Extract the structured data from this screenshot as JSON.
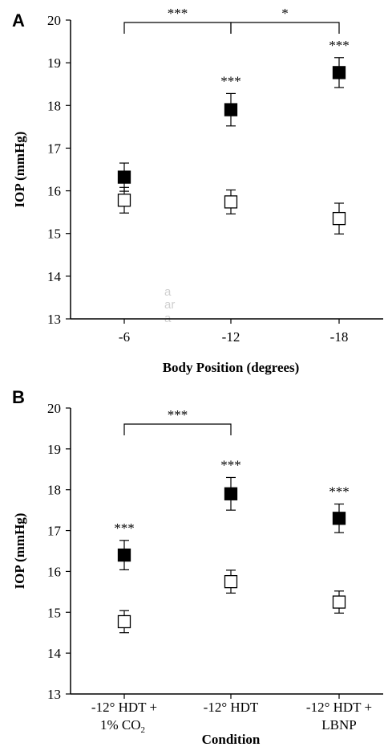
{
  "watermark": [
    "a",
    "ar",
    "a"
  ],
  "chart_data": [
    {
      "type": "scatter",
      "panel": "A",
      "xlabel": "Body Position (degrees)",
      "ylabel": "IOP (mmHg)",
      "ylim": [
        13,
        20
      ],
      "yticks": [
        13,
        14,
        15,
        16,
        17,
        18,
        19,
        20
      ],
      "categories": [
        [
          "-6"
        ],
        [
          "-12"
        ],
        [
          "-18"
        ]
      ],
      "series": [
        {
          "marker": "filled-square",
          "values": [
            16.32,
            17.9,
            18.77
          ],
          "errors": [
            0.33,
            0.38,
            0.35
          ]
        },
        {
          "marker": "open-square",
          "values": [
            15.78,
            15.74,
            15.35
          ],
          "errors": [
            0.3,
            0.28,
            0.36
          ]
        }
      ],
      "point_annotations": [
        {
          "category": 1,
          "series": 0,
          "text": "***"
        },
        {
          "category": 2,
          "series": 0,
          "text": "***"
        }
      ],
      "brackets": [
        {
          "from": 0,
          "to": 1,
          "text": "***"
        },
        {
          "from": 1,
          "to": 2,
          "text": "*"
        }
      ]
    },
    {
      "type": "scatter",
      "panel": "B",
      "xlabel": "Condition",
      "ylabel": "IOP (mmHg)",
      "ylim": [
        13,
        20
      ],
      "yticks": [
        13,
        14,
        15,
        16,
        17,
        18,
        19,
        20
      ],
      "categories": [
        [
          "-12° HDT +",
          "1% CO",
          "2"
        ],
        [
          "-12° HDT"
        ],
        [
          "-12° HDT +",
          "LBNP"
        ]
      ],
      "series": [
        {
          "marker": "filled-square",
          "values": [
            16.4,
            17.9,
            17.3
          ],
          "errors": [
            0.36,
            0.4,
            0.35
          ]
        },
        {
          "marker": "open-square",
          "values": [
            14.77,
            15.75,
            15.25
          ],
          "errors": [
            0.27,
            0.28,
            0.27
          ]
        }
      ],
      "point_annotations": [
        {
          "category": 0,
          "series": 0,
          "text": "***"
        },
        {
          "category": 1,
          "series": 0,
          "text": "***"
        },
        {
          "category": 2,
          "series": 0,
          "text": "***"
        }
      ],
      "brackets": [
        {
          "from": 0,
          "to": 1,
          "text": "***"
        }
      ]
    }
  ]
}
